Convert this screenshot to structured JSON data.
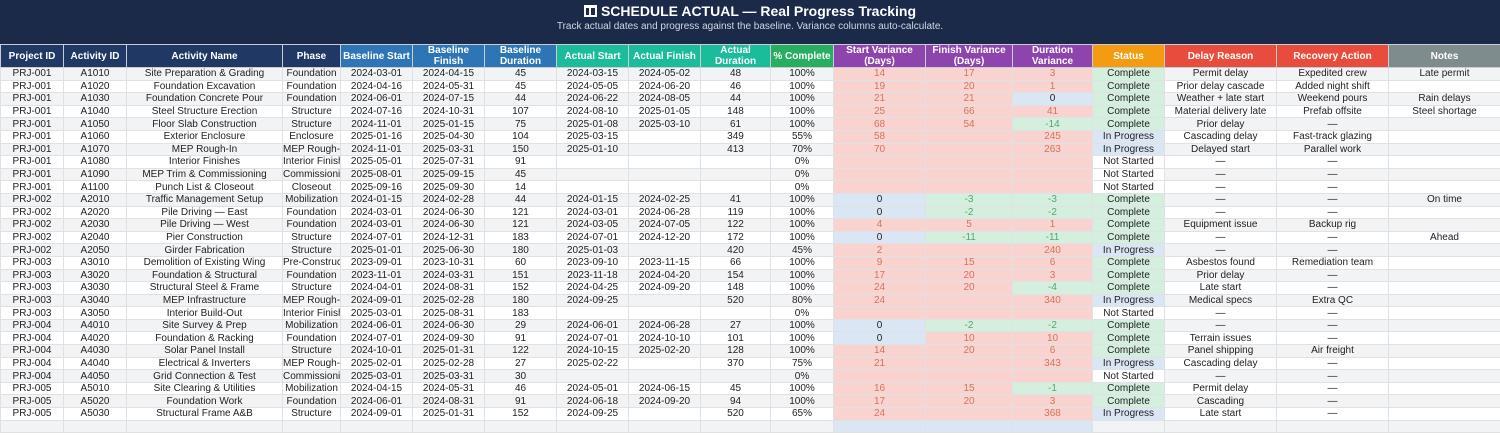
{
  "header": {
    "icon": "bar-chart-icon",
    "title": "SCHEDULE ACTUAL — Real Progress Tracking",
    "subtitle": "Track actual dates and progress against the baseline. Variance columns auto-calculate."
  },
  "colors": {
    "title_bg": "#1c2a4a",
    "id_columns": "#1f3864",
    "baseline_columns": "#2e75b6",
    "actual_columns": "#1abc9c",
    "percent_column": "#27ae60",
    "variance_columns": "#8e44ad",
    "status_column": "#f39c12",
    "delay_columns": "#e74c3c",
    "notes_column": "#7f8c8d",
    "variance_positive": "#f8d3cf",
    "variance_zero": "#dbe6f4",
    "variance_negative": "#d5efdf"
  },
  "columns": [
    "Project ID",
    "Activity ID",
    "Activity Name",
    "Phase",
    "Baseline Start",
    "Baseline Finish",
    "Baseline Duration",
    "Actual Start",
    "Actual Finish",
    "Actual Duration",
    "% Complete",
    "Start Variance (Days)",
    "Finish Variance (Days)",
    "Duration Variance",
    "Status",
    "Delay Reason",
    "Recovery Action",
    "Notes"
  ],
  "rows": [
    [
      "PRJ-001",
      "A1010",
      "Site Preparation & Grading",
      "Foundation",
      "2024-03-01",
      "2024-04-15",
      "45",
      "2024-03-15",
      "2024-05-02",
      "48",
      "100%",
      "14",
      "17",
      "3",
      "Complete",
      "Permit delay",
      "Expedited crew",
      "Late permit"
    ],
    [
      "PRJ-001",
      "A1020",
      "Foundation Excavation",
      "Foundation",
      "2024-04-16",
      "2024-05-31",
      "45",
      "2024-05-05",
      "2024-06-20",
      "46",
      "100%",
      "19",
      "20",
      "1",
      "Complete",
      "Prior delay cascade",
      "Added night shift",
      ""
    ],
    [
      "PRJ-001",
      "A1030",
      "Foundation Concrete Pour",
      "Foundation",
      "2024-06-01",
      "2024-07-15",
      "44",
      "2024-06-22",
      "2024-08-05",
      "44",
      "100%",
      "21",
      "21",
      "0",
      "Complete",
      "Weather + late start",
      "Weekend pours",
      "Rain delays"
    ],
    [
      "PRJ-001",
      "A1040",
      "Steel Structure Erection",
      "Structure",
      "2024-07-16",
      "2024-10-31",
      "107",
      "2024-08-10",
      "2025-01-05",
      "148",
      "100%",
      "25",
      "66",
      "41",
      "Complete",
      "Material delivery late",
      "Prefab offsite",
      "Steel shortage"
    ],
    [
      "PRJ-001",
      "A1050",
      "Floor Slab Construction",
      "Structure",
      "2024-11-01",
      "2025-01-15",
      "75",
      "2025-01-08",
      "2025-03-10",
      "61",
      "100%",
      "68",
      "54",
      "-14",
      "Complete",
      "Prior delay",
      "—",
      ""
    ],
    [
      "PRJ-001",
      "A1060",
      "Exterior Enclosure",
      "Enclosure",
      "2025-01-16",
      "2025-04-30",
      "104",
      "2025-03-15",
      "",
      "349",
      "55%",
      "58",
      "",
      "245",
      "In Progress",
      "Cascading delay",
      "Fast-track glazing",
      ""
    ],
    [
      "PRJ-001",
      "A1070",
      "MEP Rough-In",
      "MEP Rough-In",
      "2024-11-01",
      "2025-03-31",
      "150",
      "2025-01-10",
      "",
      "413",
      "70%",
      "70",
      "",
      "263",
      "In Progress",
      "Delayed start",
      "Parallel work",
      ""
    ],
    [
      "PRJ-001",
      "A1080",
      "Interior Finishes",
      "Interior Finishes",
      "2025-05-01",
      "2025-07-31",
      "91",
      "",
      "",
      "",
      "0%",
      "",
      "",
      "",
      "Not Started",
      "—",
      "—",
      ""
    ],
    [
      "PRJ-001",
      "A1090",
      "MEP Trim & Commissioning",
      "Commissioning",
      "2025-08-01",
      "2025-09-15",
      "45",
      "",
      "",
      "",
      "0%",
      "",
      "",
      "",
      "Not Started",
      "—",
      "—",
      ""
    ],
    [
      "PRJ-001",
      "A1100",
      "Punch List & Closeout",
      "Closeout",
      "2025-09-16",
      "2025-09-30",
      "14",
      "",
      "",
      "",
      "0%",
      "",
      "",
      "",
      "Not Started",
      "—",
      "—",
      ""
    ],
    [
      "PRJ-002",
      "A2010",
      "Traffic Management Setup",
      "Mobilization",
      "2024-01-15",
      "2024-02-28",
      "44",
      "2024-01-15",
      "2024-02-25",
      "41",
      "100%",
      "0",
      "-3",
      "-3",
      "Complete",
      "—",
      "—",
      "On time"
    ],
    [
      "PRJ-002",
      "A2020",
      "Pile Driving — East",
      "Foundation",
      "2024-03-01",
      "2024-06-30",
      "121",
      "2024-03-01",
      "2024-06-28",
      "119",
      "100%",
      "0",
      "-2",
      "-2",
      "Complete",
      "—",
      "—",
      ""
    ],
    [
      "PRJ-002",
      "A2030",
      "Pile Driving — West",
      "Foundation",
      "2024-03-01",
      "2024-06-30",
      "121",
      "2024-03-05",
      "2024-07-05",
      "122",
      "100%",
      "4",
      "5",
      "1",
      "Complete",
      "Equipment issue",
      "Backup rig",
      ""
    ],
    [
      "PRJ-002",
      "A2040",
      "Pier Construction",
      "Structure",
      "2024-07-01",
      "2024-12-31",
      "183",
      "2024-07-01",
      "2024-12-20",
      "172",
      "100%",
      "0",
      "-11",
      "-11",
      "Complete",
      "—",
      "—",
      "Ahead"
    ],
    [
      "PRJ-002",
      "A2050",
      "Girder Fabrication",
      "Structure",
      "2025-01-01",
      "2025-06-30",
      "180",
      "2025-01-03",
      "",
      "420",
      "45%",
      "2",
      "",
      "240",
      "In Progress",
      "—",
      "—",
      ""
    ],
    [
      "PRJ-003",
      "A3010",
      "Demolition of Existing Wing",
      "Pre-Construction",
      "2023-09-01",
      "2023-10-31",
      "60",
      "2023-09-10",
      "2023-11-15",
      "66",
      "100%",
      "9",
      "15",
      "6",
      "Complete",
      "Asbestos found",
      "Remediation team",
      ""
    ],
    [
      "PRJ-003",
      "A3020",
      "Foundation & Structural",
      "Foundation",
      "2023-11-01",
      "2024-03-31",
      "151",
      "2023-11-18",
      "2024-04-20",
      "154",
      "100%",
      "17",
      "20",
      "3",
      "Complete",
      "Prior delay",
      "—",
      ""
    ],
    [
      "PRJ-003",
      "A3030",
      "Structural Steel & Frame",
      "Structure",
      "2024-04-01",
      "2024-08-31",
      "152",
      "2024-04-25",
      "2024-09-20",
      "148",
      "100%",
      "24",
      "20",
      "-4",
      "Complete",
      "Late start",
      "—",
      ""
    ],
    [
      "PRJ-003",
      "A3040",
      "MEP Infrastructure",
      "MEP Rough-In",
      "2024-09-01",
      "2025-02-28",
      "180",
      "2024-09-25",
      "",
      "520",
      "80%",
      "24",
      "",
      "340",
      "In Progress",
      "Medical specs",
      "Extra QC",
      ""
    ],
    [
      "PRJ-003",
      "A3050",
      "Interior Build-Out",
      "Interior Finishes",
      "2025-03-01",
      "2025-08-31",
      "183",
      "",
      "",
      "",
      "0%",
      "",
      "",
      "",
      "Not Started",
      "—",
      "—",
      ""
    ],
    [
      "PRJ-004",
      "A4010",
      "Site Survey & Prep",
      "Mobilization",
      "2024-06-01",
      "2024-06-30",
      "29",
      "2024-06-01",
      "2024-06-28",
      "27",
      "100%",
      "0",
      "-2",
      "-2",
      "Complete",
      "—",
      "—",
      ""
    ],
    [
      "PRJ-004",
      "A4020",
      "Foundation & Racking",
      "Foundation",
      "2024-07-01",
      "2024-09-30",
      "91",
      "2024-07-01",
      "2024-10-10",
      "101",
      "100%",
      "0",
      "10",
      "10",
      "Complete",
      "Terrain issues",
      "—",
      ""
    ],
    [
      "PRJ-004",
      "A4030",
      "Solar Panel Install",
      "Structure",
      "2024-10-01",
      "2025-01-31",
      "122",
      "2024-10-15",
      "2025-02-20",
      "128",
      "100%",
      "14",
      "20",
      "6",
      "Complete",
      "Panel shipping",
      "Air freight",
      ""
    ],
    [
      "PRJ-004",
      "A4040",
      "Electrical & Inverters",
      "MEP Rough-In",
      "2025-02-01",
      "2025-02-28",
      "27",
      "2025-02-22",
      "",
      "370",
      "75%",
      "21",
      "",
      "343",
      "In Progress",
      "Cascading delay",
      "—",
      ""
    ],
    [
      "PRJ-004",
      "A4050",
      "Grid Connection & Test",
      "Commissioning",
      "2025-03-01",
      "2025-03-31",
      "30",
      "",
      "",
      "",
      "0%",
      "",
      "",
      "",
      "Not Started",
      "—",
      "—",
      ""
    ],
    [
      "PRJ-005",
      "A5010",
      "Site Clearing & Utilities",
      "Mobilization",
      "2024-04-15",
      "2024-05-31",
      "46",
      "2024-05-01",
      "2024-06-15",
      "45",
      "100%",
      "16",
      "15",
      "-1",
      "Complete",
      "Permit delay",
      "—",
      ""
    ],
    [
      "PRJ-005",
      "A5020",
      "Foundation Work",
      "Foundation",
      "2024-06-01",
      "2024-08-31",
      "91",
      "2024-06-18",
      "2024-09-20",
      "94",
      "100%",
      "17",
      "20",
      "3",
      "Complete",
      "Cascading",
      "—",
      ""
    ],
    [
      "PRJ-005",
      "A5030",
      "Structural Frame A&B",
      "Structure",
      "2024-09-01",
      "2025-01-31",
      "152",
      "2024-09-25",
      "",
      "520",
      "65%",
      "24",
      "",
      "368",
      "In Progress",
      "Late start",
      "—",
      ""
    ]
  ]
}
